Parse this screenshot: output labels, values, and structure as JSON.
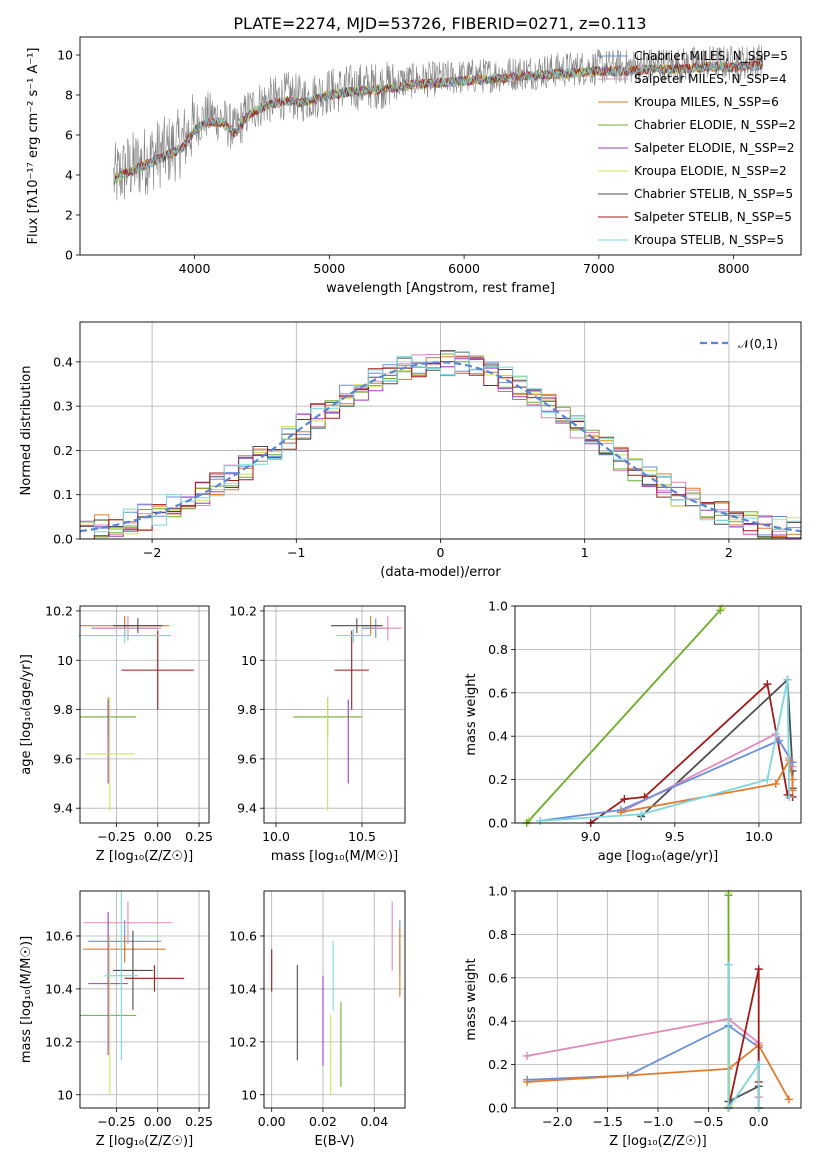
{
  "figure_title": "PLATE=2274, MJD=53726, FIBERID=0271, z=0.113",
  "colors": {
    "chabrier_miles": "#6a8fd8",
    "salpeter_miles": "#e08ab8",
    "kroupa_miles": "#e07c2e",
    "chabrier_elodie": "#6fae36",
    "salpeter_elodie": "#9b3fbf",
    "kroupa_elodie": "#d3e05a",
    "chabrier_stelib": "#4d4d4d",
    "salpeter_stelib": "#a31a1a",
    "kroupa_stelib": "#7fd6dc"
  },
  "chart_data": [
    {
      "id": "spectrum",
      "type": "line",
      "title": "PLATE=2274, MJD=53726, FIBERID=0271, z=0.113",
      "xlabel": "wavelength [Angstrom, rest frame]",
      "ylabel": "Flux [fλ10⁻¹⁷ erg cm⁻² s⁻¹ A⁻¹]",
      "xlim": [
        3150,
        8500
      ],
      "ylim": [
        0,
        10.9
      ],
      "xticks": [
        4000,
        5000,
        6000,
        7000,
        8000
      ],
      "yticks": [
        0,
        2,
        4,
        6,
        8,
        10
      ],
      "grid": false,
      "legend_position": "top-right",
      "legend": [
        {
          "name": "Chabrier MILES, N_SSP=5",
          "color": "#6a8fd8"
        },
        {
          "name": "Salpeter MILES, N_SSP=4",
          "color": "#e08ab8"
        },
        {
          "name": "Kroupa MILES, N_SSP=6",
          "color": "#e07c2e"
        },
        {
          "name": "Chabrier ELODIE, N_SSP=2",
          "color": "#6fae36"
        },
        {
          "name": "Salpeter ELODIE, N_SSP=2",
          "color": "#9b3fbf"
        },
        {
          "name": "Kroupa ELODIE, N_SSP=2",
          "color": "#d3e05a"
        },
        {
          "name": "Chabrier STELIB, N_SSP=5",
          "color": "#4d4d4d"
        },
        {
          "name": "Salpeter STELIB, N_SSP=5",
          "color": "#a31a1a"
        },
        {
          "name": "Kroupa STELIB, N_SSP=5",
          "color": "#7fd6dc"
        }
      ],
      "data_series": {
        "name": "data",
        "color": "#808080",
        "x": [
          3400,
          3500,
          3600,
          3700,
          3800,
          3900,
          4000,
          4100,
          4200,
          4300,
          4400,
          4500,
          4600,
          4700,
          4800,
          4900,
          5000,
          5200,
          5400,
          5600,
          5800,
          6000,
          6200,
          6400,
          6600,
          6800,
          7000,
          7200,
          7400,
          7600,
          7800,
          8000,
          8200
        ],
        "y": [
          3.8,
          4.3,
          4.6,
          5.0,
          5.2,
          5.6,
          6.5,
          7.0,
          6.8,
          6.2,
          7.2,
          7.6,
          7.8,
          8.0,
          7.8,
          8.0,
          8.2,
          8.4,
          8.5,
          8.7,
          8.8,
          8.9,
          9.0,
          9.1,
          9.2,
          9.3,
          9.4,
          9.4,
          9.5,
          9.5,
          9.6,
          9.6,
          9.7
        ]
      },
      "model_series": {
        "name": "models",
        "x": [
          3400,
          3500,
          3600,
          3700,
          3800,
          3900,
          4000,
          4100,
          4200,
          4300,
          4400,
          4500,
          4600,
          4700,
          4800,
          4900,
          5000,
          5200,
          5400,
          5600,
          5800,
          6000,
          6200,
          6400,
          6600,
          6800,
          7000,
          7200,
          7400,
          7600,
          7800,
          8000,
          8200
        ],
        "y": [
          3.8,
          4.1,
          4.4,
          4.7,
          5.0,
          5.3,
          6.2,
          6.7,
          6.6,
          6.1,
          7.0,
          7.4,
          7.6,
          7.7,
          7.6,
          7.8,
          8.0,
          8.2,
          8.3,
          8.5,
          8.6,
          8.7,
          8.8,
          8.9,
          9.0,
          9.1,
          9.2,
          9.2,
          9.3,
          9.3,
          9.4,
          9.4,
          9.5
        ]
      }
    },
    {
      "id": "residuals",
      "type": "line",
      "xlabel": "(data-model)/error",
      "ylabel": "Normed distribution",
      "xlim": [
        -2.5,
        2.5
      ],
      "ylim": [
        0,
        0.49
      ],
      "xticks": [
        -2,
        -1,
        0,
        1,
        2
      ],
      "xticklabels": [
        "−2",
        "−1",
        "0",
        "1",
        "2"
      ],
      "yticks": [
        0.0,
        0.1,
        0.2,
        0.3,
        0.4
      ],
      "grid": true,
      "legend_position": "top-right",
      "legend": [
        {
          "name": "𝒩(0,1)",
          "color": "#5b84d6"
        }
      ],
      "gaussian": {
        "mean": 0,
        "sigma": 1
      },
      "hist_bin_width": 0.1
    },
    {
      "id": "age-vs-z",
      "type": "scatter",
      "xlabel": "Z [log₁₀(Z/Z☉)]",
      "ylabel": "age  [log₁₀(age/yr)]",
      "xlim": [
        -0.47,
        0.31
      ],
      "ylim": [
        9.34,
        10.22
      ],
      "xticks": [
        -0.25,
        0.0,
        0.25
      ],
      "xticklabels": [
        "−0.25",
        "0.00",
        "0.25"
      ],
      "yticks": [
        9.4,
        9.6,
        9.8,
        10.0,
        10.2
      ],
      "grid": true,
      "points": [
        {
          "name": "Chabrier MILES",
          "color": "#6a8fd8",
          "x": -0.2,
          "xerr": 0.2,
          "y": 10.13,
          "yerr": 0.04
        },
        {
          "name": "Salpeter MILES",
          "color": "#e08ab8",
          "x": -0.18,
          "xerr": 0.2,
          "y": 10.13,
          "yerr": 0.05
        },
        {
          "name": "Kroupa MILES",
          "color": "#e07c2e",
          "x": -0.2,
          "xerr": 0.27,
          "y": 10.14,
          "yerr": 0.04
        },
        {
          "name": "Chabrier ELODIE",
          "color": "#6fae36",
          "x": -0.3,
          "xerr": 0.17,
          "y": 9.77,
          "yerr": 0.08
        },
        {
          "name": "Salpeter ELODIE",
          "color": "#9b3fbf",
          "x": -0.3,
          "xerr": 0.0,
          "y": 9.67,
          "yerr": 0.17
        },
        {
          "name": "Kroupa ELODIE",
          "color": "#d3e05a",
          "x": -0.29,
          "xerr": 0.15,
          "y": 9.62,
          "yerr": 0.23
        },
        {
          "name": "Chabrier STELIB",
          "color": "#4d4d4d",
          "x": -0.12,
          "xerr": 0.15,
          "y": 10.14,
          "yerr": 0.03
        },
        {
          "name": "Salpeter STELIB",
          "color": "#a31a1a",
          "x": 0.0,
          "xerr": 0.22,
          "y": 9.96,
          "yerr": 0.16
        },
        {
          "name": "Kroupa STELIB",
          "color": "#7fd6dc",
          "x": -0.2,
          "xerr": 0.28,
          "y": 10.1,
          "yerr": 0.03
        }
      ]
    },
    {
      "id": "age-vs-mass",
      "type": "scatter",
      "xlabel": "mass [log₁₀(M/M☉)]",
      "ylabel": "",
      "xlim": [
        9.93,
        10.75
      ],
      "ylim": [
        9.34,
        10.22
      ],
      "xticks": [
        10.0,
        10.5
      ],
      "xticklabels": [
        "10.0",
        "10.5"
      ],
      "yticks": [
        9.4,
        9.6,
        9.8,
        10.0,
        10.2
      ],
      "grid": true,
      "points": [
        {
          "name": "Chabrier MILES",
          "color": "#6a8fd8",
          "x": 10.58,
          "xerr": 0.08,
          "y": 10.13,
          "yerr": 0.04
        },
        {
          "name": "Salpeter MILES",
          "color": "#e08ab8",
          "x": 10.65,
          "xerr": 0.08,
          "y": 10.13,
          "yerr": 0.05
        },
        {
          "name": "Kroupa MILES",
          "color": "#e07c2e",
          "x": 10.55,
          "xerr": 0.05,
          "y": 10.14,
          "yerr": 0.04
        },
        {
          "name": "Chabrier ELODIE",
          "color": "#6fae36",
          "x": 10.3,
          "xerr": 0.2,
          "y": 9.77,
          "yerr": 0.08
        },
        {
          "name": "Salpeter ELODIE",
          "color": "#9b3fbf",
          "x": 10.42,
          "xerr": 0.0,
          "y": 9.67,
          "yerr": 0.17
        },
        {
          "name": "Kroupa ELODIE",
          "color": "#d3e05a",
          "x": 10.3,
          "xerr": 0.0,
          "y": 9.62,
          "yerr": 0.23
        },
        {
          "name": "Chabrier STELIB",
          "color": "#4d4d4d",
          "x": 10.47,
          "xerr": 0.15,
          "y": 10.14,
          "yerr": 0.03
        },
        {
          "name": "Salpeter STELIB",
          "color": "#a31a1a",
          "x": 10.44,
          "xerr": 0.1,
          "y": 9.96,
          "yerr": 0.16
        },
        {
          "name": "Kroupa STELIB",
          "color": "#7fd6dc",
          "x": 10.45,
          "xerr": 0.1,
          "y": 10.1,
          "yerr": 0.03
        }
      ]
    },
    {
      "id": "mass-weight-vs-age",
      "type": "line",
      "xlabel": "age  [log₁₀(age/yr)]",
      "ylabel": "mass weight",
      "xlim": [
        8.55,
        10.25
      ],
      "ylim": [
        0,
        1.0
      ],
      "xticks": [
        9.0,
        9.5,
        10.0
      ],
      "xticklabels": [
        "9.0",
        "9.5",
        "10.0"
      ],
      "yticks": [
        0.0,
        0.2,
        0.4,
        0.6,
        0.8,
        1.0
      ],
      "grid": true,
      "series": [
        {
          "name": "Kroupa ELODIE",
          "color": "#d3e05a",
          "x": [
            8.63,
            9.78
          ],
          "y": [
            0.01,
            0.99
          ]
        },
        {
          "name": "Chabrier ELODIE",
          "color": "#6fae36",
          "x": [
            8.62,
            9.77
          ],
          "y": [
            0.0,
            0.98
          ]
        },
        {
          "name": "Salpeter STELIB",
          "color": "#a31a1a",
          "x": [
            9.0,
            9.2,
            9.32,
            10.05,
            10.17,
            10.2
          ],
          "y": [
            0.0,
            0.11,
            0.12,
            0.64,
            0.13,
            0.12
          ]
        },
        {
          "name": "Chabrier STELIB",
          "color": "#4d4d4d",
          "x": [
            9.3,
            10.17,
            10.2,
            10.2
          ],
          "y": [
            0.03,
            0.66,
            0.24,
            0.16
          ]
        },
        {
          "name": "Salpeter MILES",
          "color": "#e08ab8",
          "x": [
            9.18,
            10.1,
            10.18,
            10.2
          ],
          "y": [
            0.05,
            0.41,
            0.3,
            0.26
          ]
        },
        {
          "name": "Chabrier MILES",
          "color": "#6a8fd8",
          "x": [
            8.7,
            9.18,
            10.12,
            10.2
          ],
          "y": [
            0.01,
            0.06,
            0.38,
            0.28
          ]
        },
        {
          "name": "Kroupa MILES",
          "color": "#e07c2e",
          "x": [
            9.18,
            10.1,
            10.18,
            10.2,
            10.2
          ],
          "y": [
            0.05,
            0.18,
            0.29,
            0.2,
            0.15
          ]
        },
        {
          "name": "Kroupa STELIB",
          "color": "#7fd6dc",
          "x": [
            8.7,
            9.3,
            10.05,
            10.17,
            10.18
          ],
          "y": [
            0.01,
            0.04,
            0.2,
            0.66,
            0.12
          ]
        }
      ]
    },
    {
      "id": "mass-vs-z",
      "type": "scatter",
      "xlabel": "Z [log₁₀(Z/Z☉)]",
      "ylabel": "mass [log₁₀(M/M☉)]",
      "xlim": [
        -0.47,
        0.31
      ],
      "ylim": [
        9.95,
        10.77
      ],
      "xticks": [
        -0.25,
        0.0,
        0.25
      ],
      "xticklabels": [
        "−0.25",
        "0.00",
        "0.25"
      ],
      "yticks": [
        10.0,
        10.2,
        10.4,
        10.6
      ],
      "grid": true,
      "points": [
        {
          "name": "Chabrier MILES",
          "color": "#6a8fd8",
          "x": -0.2,
          "xerr": 0.22,
          "y": 10.58,
          "yerr": 0.08
        },
        {
          "name": "Salpeter MILES",
          "color": "#e08ab8",
          "x": -0.18,
          "xerr": 0.27,
          "y": 10.65,
          "yerr": 0.08
        },
        {
          "name": "Kroupa MILES",
          "color": "#e07c2e",
          "x": -0.2,
          "xerr": 0.25,
          "y": 10.55,
          "yerr": 0.05
        },
        {
          "name": "Chabrier ELODIE",
          "color": "#6fae36",
          "x": -0.3,
          "xerr": 0.17,
          "y": 10.3,
          "yerr": 0.0
        },
        {
          "name": "Salpeter ELODIE",
          "color": "#9b3fbf",
          "x": -0.3,
          "xerr": 0.12,
          "y": 10.42,
          "yerr": 0.27
        },
        {
          "name": "Kroupa ELODIE",
          "color": "#d3e05a",
          "x": -0.29,
          "xerr": 0.0,
          "y": 10.3,
          "yerr": 0.3
        },
        {
          "name": "Chabrier STELIB",
          "color": "#4d4d4d",
          "x": -0.15,
          "xerr": 0.12,
          "y": 10.47,
          "yerr": 0.15
        },
        {
          "name": "Salpeter STELIB",
          "color": "#a31a1a",
          "x": -0.02,
          "xerr": 0.18,
          "y": 10.44,
          "yerr": 0.05
        },
        {
          "name": "Kroupa STELIB",
          "color": "#7fd6dc",
          "x": -0.22,
          "xerr": 0.1,
          "y": 10.45,
          "yerr": 0.32
        }
      ]
    },
    {
      "id": "mass-vs-ebv",
      "type": "scatter",
      "xlabel": "E(B-V)",
      "ylabel": "",
      "xlim": [
        -0.003,
        0.052
      ],
      "ylim": [
        9.95,
        10.77
      ],
      "xticks": [
        0.0,
        0.02,
        0.04
      ],
      "xticklabels": [
        "0.00",
        "0.02",
        "0.04"
      ],
      "yticks": [
        10.0,
        10.2,
        10.4,
        10.6
      ],
      "grid": true,
      "points": [
        {
          "name": "Salpeter STELIB",
          "color": "#a31a1a",
          "x": 0.0,
          "y": 10.47,
          "yerr": 0.08
        },
        {
          "name": "Chabrier STELIB",
          "color": "#4d4d4d",
          "x": 0.01,
          "y": 10.31,
          "yerr": 0.18
        },
        {
          "name": "Salpeter ELODIE",
          "color": "#9b3fbf",
          "x": 0.02,
          "y": 10.28,
          "yerr": 0.17
        },
        {
          "name": "Kroupa ELODIE",
          "color": "#d3e05a",
          "x": 0.023,
          "y": 10.15,
          "yerr": 0.15
        },
        {
          "name": "Kroupa STELIB",
          "color": "#7fd6dc",
          "x": 0.024,
          "y": 10.45,
          "yerr": 0.13
        },
        {
          "name": "Chabrier ELODIE",
          "color": "#6fae36",
          "x": 0.027,
          "y": 10.19,
          "yerr": 0.16
        },
        {
          "name": "Salpeter MILES",
          "color": "#e08ab8",
          "x": 0.047,
          "y": 10.6,
          "yerr": 0.13
        },
        {
          "name": "Chabrier MILES",
          "color": "#6a8fd8",
          "x": 0.05,
          "y": 10.56,
          "yerr": 0.1
        },
        {
          "name": "Kroupa MILES",
          "color": "#e07c2e",
          "x": 0.05,
          "y": 10.5,
          "yerr": 0.13
        }
      ]
    },
    {
      "id": "mass-weight-vs-z",
      "type": "line",
      "xlabel": "Z [log₁₀(Z/Z☉)]",
      "ylabel": "mass weight",
      "xlim": [
        -2.42,
        0.42
      ],
      "ylim": [
        0,
        1.0
      ],
      "xticks": [
        -2.0,
        -1.5,
        -1.0,
        -0.5,
        0.0
      ],
      "xticklabels": [
        "−2.0",
        "−1.5",
        "−1.0",
        "−0.5",
        "0.0"
      ],
      "yticks": [
        0.0,
        0.2,
        0.4,
        0.6,
        0.8,
        1.0
      ],
      "grid": true,
      "series": [
        {
          "name": "Kroupa ELODIE",
          "color": "#d3e05a",
          "x": [
            -0.3,
            -0.29
          ],
          "y": [
            0.99,
            0.01
          ]
        },
        {
          "name": "Chabrier ELODIE",
          "color": "#6fae36",
          "x": [
            -0.3,
            -0.3
          ],
          "y": [
            0.98,
            0.0
          ]
        },
        {
          "name": "Salpeter ELODIE",
          "color": "#9b3fbf",
          "x": [
            -0.3,
            -0.3
          ],
          "y": [
            0.66,
            0.0
          ]
        },
        {
          "name": "Salpeter MILES",
          "color": "#e08ab8",
          "x": [
            -2.3,
            -0.3,
            0.0,
            0.0
          ],
          "y": [
            0.24,
            0.41,
            0.3,
            0.05
          ]
        },
        {
          "name": "Chabrier MILES",
          "color": "#6a8fd8",
          "x": [
            -2.3,
            -1.3,
            -0.3,
            0.0,
            0.0
          ],
          "y": [
            0.13,
            0.15,
            0.38,
            0.28,
            0.0
          ]
        },
        {
          "name": "Kroupa MILES",
          "color": "#e07c2e",
          "x": [
            -2.3,
            -0.3,
            0.0,
            0.3
          ],
          "y": [
            0.12,
            0.18,
            0.29,
            0.04
          ]
        },
        {
          "name": "Salpeter STELIB",
          "color": "#a31a1a",
          "x": [
            -0.3,
            0.0,
            0.0
          ],
          "y": [
            0.0,
            0.64,
            0.12
          ]
        },
        {
          "name": "Chabrier STELIB",
          "color": "#4d4d4d",
          "x": [
            -0.3,
            0.0,
            0.0
          ],
          "y": [
            0.03,
            0.1,
            0.0
          ]
        },
        {
          "name": "Kroupa STELIB",
          "color": "#7fd6dc",
          "x": [
            -0.3,
            -0.3,
            0.0,
            0.0
          ],
          "y": [
            0.66,
            0.0,
            0.2,
            0.0
          ]
        }
      ]
    }
  ]
}
